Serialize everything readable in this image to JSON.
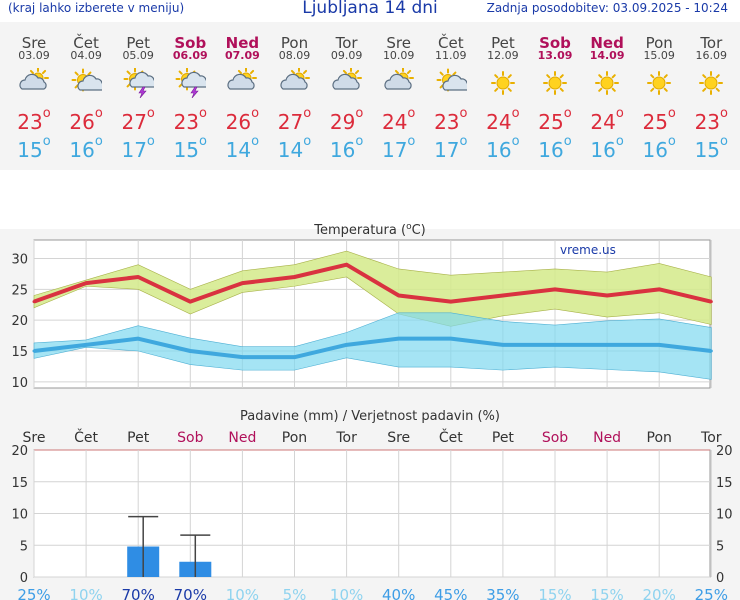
{
  "header": {
    "hint": "(kraj lahko izberete v meniju)",
    "title": "Ljubljana 14 dni",
    "updated": "Zadnja posodobitev: 03.09.2025 - 10:24"
  },
  "days": [
    {
      "name": "Sre",
      "date": "03.09",
      "icon": "partly-cloudy-icon",
      "max": "23",
      "min": "15",
      "weekend": false
    },
    {
      "name": "Čet",
      "date": "04.09",
      "icon": "sun-cloud-icon",
      "max": "26",
      "min": "16",
      "weekend": false
    },
    {
      "name": "Pet",
      "date": "05.09",
      "icon": "thunderstorm-icon",
      "max": "27",
      "min": "17",
      "weekend": false
    },
    {
      "name": "Sob",
      "date": "06.09",
      "icon": "thunderstorm-icon",
      "max": "23",
      "min": "15",
      "weekend": true
    },
    {
      "name": "Ned",
      "date": "07.09",
      "icon": "partly-cloudy-icon",
      "max": "26",
      "min": "14",
      "weekend": true
    },
    {
      "name": "Pon",
      "date": "08.09",
      "icon": "partly-cloudy-icon",
      "max": "27",
      "min": "14",
      "weekend": false
    },
    {
      "name": "Tor",
      "date": "09.09",
      "icon": "partly-cloudy-icon",
      "max": "29",
      "min": "16",
      "weekend": false
    },
    {
      "name": "Sre",
      "date": "10.09",
      "icon": "partly-cloudy-icon",
      "max": "24",
      "min": "17",
      "weekend": false
    },
    {
      "name": "Čet",
      "date": "11.09",
      "icon": "sun-cloud-icon",
      "max": "23",
      "min": "17",
      "weekend": false
    },
    {
      "name": "Pet",
      "date": "12.09",
      "icon": "sun-icon",
      "max": "24",
      "min": "16",
      "weekend": false
    },
    {
      "name": "Sob",
      "date": "13.09",
      "icon": "sun-icon",
      "max": "25",
      "min": "16",
      "weekend": true
    },
    {
      "name": "Ned",
      "date": "14.09",
      "icon": "sun-icon",
      "max": "24",
      "min": "16",
      "weekend": true
    },
    {
      "name": "Pon",
      "date": "15.09",
      "icon": "sun-icon",
      "max": "25",
      "min": "16",
      "weekend": false
    },
    {
      "name": "Tor",
      "date": "16.09",
      "icon": "sun-icon",
      "max": "23",
      "min": "15",
      "weekend": false
    }
  ],
  "chart_data": [
    {
      "type": "line",
      "title": "Temperatura (°C)",
      "watermark": "vreme.us",
      "categories": [
        "Sre",
        "Čet",
        "Pet",
        "Sob",
        "Ned",
        "Pon",
        "Tor",
        "Sre",
        "Čet",
        "Pet",
        "Sob",
        "Ned",
        "Pon",
        "Tor"
      ],
      "ylim": [
        9,
        33
      ],
      "yticks": [
        10,
        15,
        20,
        25,
        30
      ],
      "series": [
        {
          "name": "max",
          "color": "#d93240",
          "values": [
            23,
            26,
            27,
            23,
            26,
            27,
            29,
            24,
            23,
            24,
            25,
            24,
            25,
            23
          ]
        },
        {
          "name": "min",
          "color": "#3fa8de",
          "values": [
            15,
            16,
            17,
            15,
            14,
            14,
            16,
            17,
            17,
            16,
            16,
            16,
            16,
            15
          ]
        }
      ],
      "max_band": {
        "upper": [
          24,
          26.5,
          29,
          25,
          28,
          29,
          31.2,
          28.3,
          27.3,
          27.8,
          28.3,
          27.8,
          29.2,
          27
        ],
        "lower": [
          22,
          25.5,
          25,
          21,
          24.5,
          25.5,
          27,
          21,
          19,
          20.7,
          21.8,
          20.5,
          21.2,
          19.3
        ]
      },
      "min_band": {
        "upper": [
          16.3,
          16.8,
          19.1,
          17.1,
          15.7,
          15.7,
          18,
          21.2,
          21.2,
          19.8,
          19.2,
          19.9,
          20.2,
          18.8
        ],
        "lower": [
          13.8,
          15.6,
          15,
          12.8,
          11.9,
          11.9,
          13.9,
          12.4,
          12.4,
          11.9,
          12.4,
          12,
          11.6,
          10.4
        ]
      }
    },
    {
      "type": "bar",
      "title": "Padavine (mm) / Verjetnost padavin (%)",
      "categories": [
        "Sre",
        "Čet",
        "Pet",
        "Sob",
        "Ned",
        "Pon",
        "Tor",
        "Sre",
        "Čet",
        "Pet",
        "Sob",
        "Ned",
        "Pon",
        "Tor"
      ],
      "ylim": [
        0,
        20
      ],
      "yticks": [
        0,
        5,
        10,
        15,
        20
      ],
      "values": [
        0,
        0,
        4.8,
        2.4,
        0,
        0,
        0,
        0,
        0,
        0,
        0,
        0,
        0,
        0
      ],
      "error_high": [
        0,
        0,
        9.5,
        6.6,
        0,
        0,
        0,
        0,
        0,
        0,
        0,
        0,
        0,
        0
      ],
      "probability": [
        "25%",
        "10%",
        "70%",
        "70%",
        "10%",
        "5%",
        "10%",
        "40%",
        "45%",
        "35%",
        "15%",
        "15%",
        "20%",
        "25%"
      ]
    }
  ]
}
